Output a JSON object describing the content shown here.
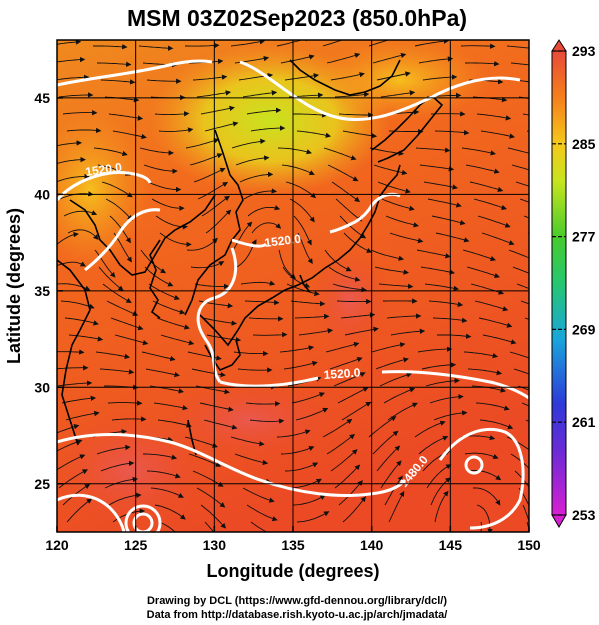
{
  "title": "MSM 03Z02Sep2023 (850.0hPa)",
  "x_axis": {
    "label": "Longitude (degrees)",
    "ticks": [
      "120",
      "125",
      "130",
      "135",
      "140",
      "145",
      "150"
    ]
  },
  "y_axis": {
    "label": "Latitude  (degrees)",
    "ticks": [
      "25",
      "30",
      "35",
      "40",
      "45"
    ]
  },
  "colorbar": {
    "ticks": [
      "293",
      "285",
      "277",
      "269",
      "261",
      "253"
    ],
    "colors": [
      "#cc2ecc",
      "#2b2bcc",
      "#17b8d9",
      "#31c743",
      "#b8e51c",
      "#f2c81a",
      "#f58a1b",
      "#e8432a",
      "#e85060"
    ]
  },
  "contour_labels": {
    "c1": "1520.0",
    "c2": "1520.0",
    "c3": "1520.0",
    "c4": "1480.0"
  },
  "credits": {
    "line1": "Drawing by DCL (https://www.gfd-dennou.org/library/dcl/)",
    "line2": "Data from http://database.rish.kyoto-u.ac.jp/arch/jmadata/"
  }
}
